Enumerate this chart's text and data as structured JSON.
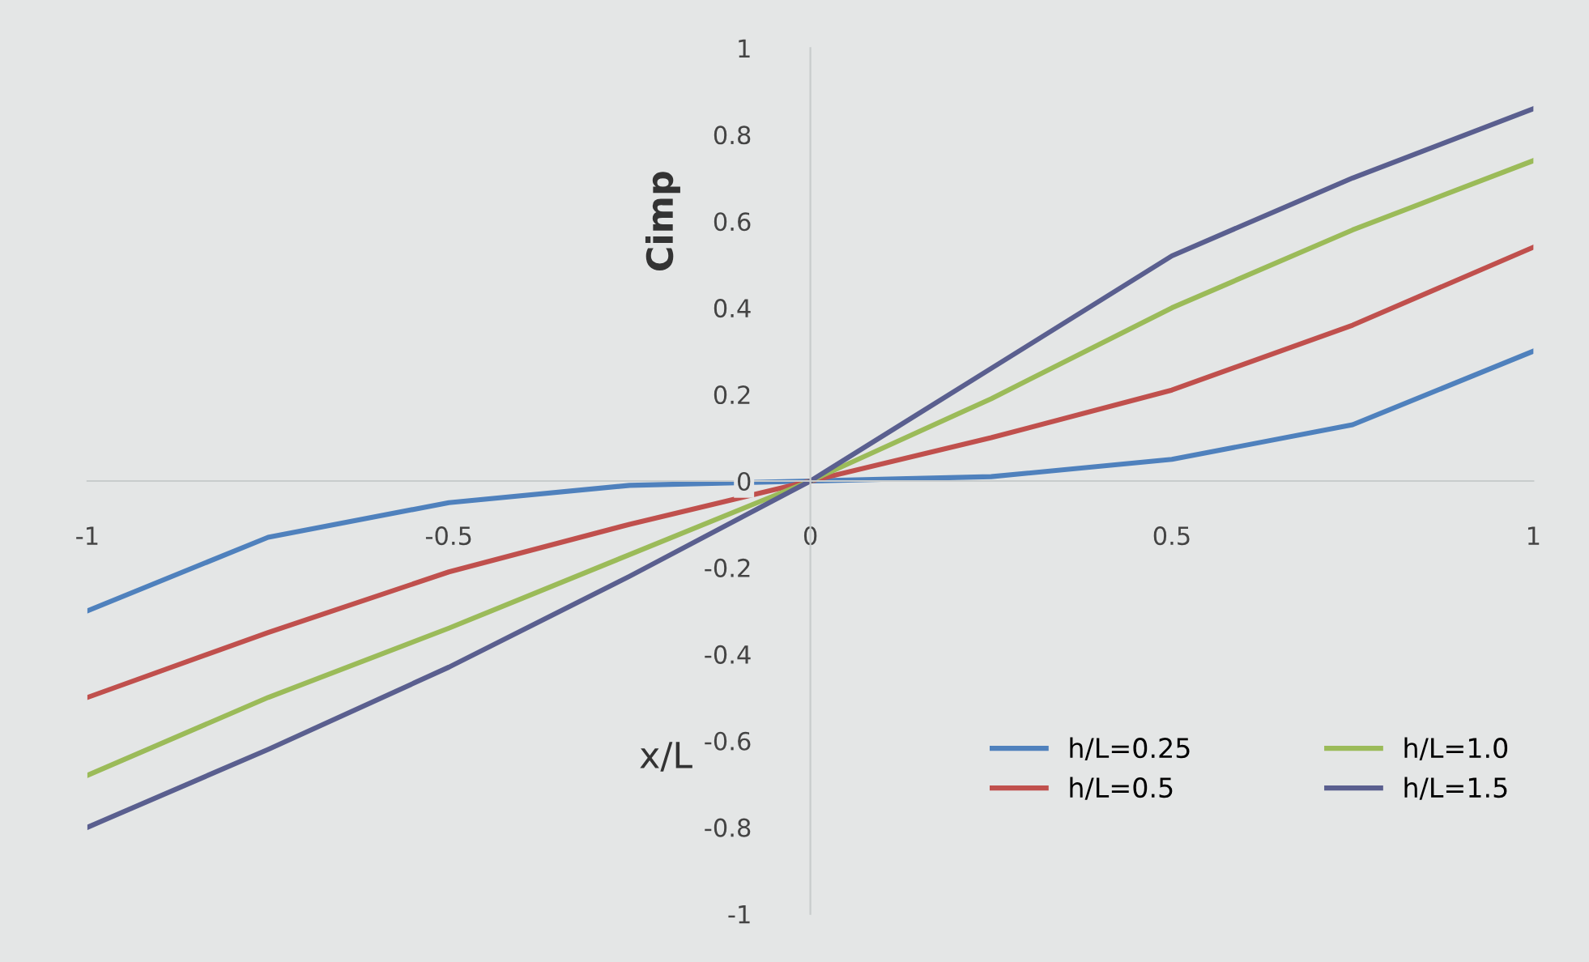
{
  "chart_data": {
    "type": "line",
    "xlabel": "x/L",
    "ylabel": "Cimp",
    "x": [
      -1,
      -0.75,
      -0.5,
      -0.25,
      0,
      0.25,
      0.5,
      0.75,
      1
    ],
    "series": [
      {
        "name": "h/L=0.25",
        "color": "#4f81bd",
        "values": [
          -0.3,
          -0.13,
          -0.05,
          -0.01,
          0,
          0.01,
          0.05,
          0.13,
          0.3
        ]
      },
      {
        "name": "h/L=0.5",
        "color": "#c0504d",
        "values": [
          -0.5,
          -0.35,
          -0.21,
          -0.1,
          0,
          0.1,
          0.21,
          0.36,
          0.54
        ]
      },
      {
        "name": "h/L=1.0",
        "color": "#9bbb59",
        "values": [
          -0.68,
          -0.5,
          -0.34,
          -0.17,
          0,
          0.19,
          0.4,
          0.58,
          0.74
        ]
      },
      {
        "name": "h/L=1.5",
        "color": "#5a5f8f",
        "values": [
          -0.8,
          -0.62,
          -0.43,
          -0.22,
          0,
          0.26,
          0.52,
          0.7,
          0.86
        ]
      }
    ],
    "xlim": [
      -1,
      1
    ],
    "ylim": [
      -1,
      1
    ],
    "xticks": [
      -1,
      -0.5,
      0,
      0.5,
      1
    ],
    "yticks": [
      -1,
      -0.8,
      -0.6,
      -0.4,
      -0.2,
      0,
      0.2,
      0.4,
      0.6,
      0.8,
      1
    ],
    "grid": false,
    "legend": "bottom right",
    "marker": "none",
    "line_style": "solid"
  }
}
